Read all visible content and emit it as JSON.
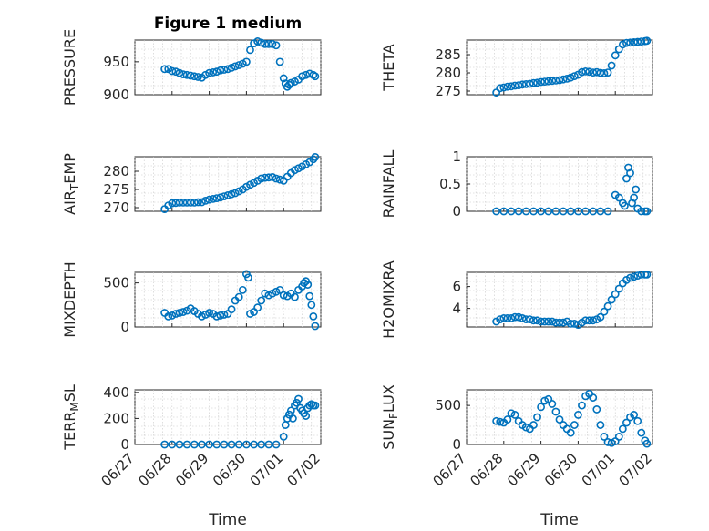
{
  "figure": {
    "title": "Figure 1 medium",
    "xlabel": "Time",
    "marker_color": "#0072BD",
    "x_tick_labels": [
      "06/27",
      "06/28",
      "06/29",
      "06/30",
      "07/01",
      "07/02"
    ],
    "x_range_days": [
      0,
      5
    ]
  },
  "chart_data": [
    {
      "type": "scatter",
      "title": "Figure 1 medium",
      "ylabel": "PRESSURE",
      "xlabel": "",
      "xlim": [
        "06/27",
        "07/02"
      ],
      "ylim": [
        900,
        983
      ],
      "yticks": [
        900,
        950
      ],
      "grid": true,
      "x": [
        0.8,
        0.9,
        1.0,
        1.1,
        1.2,
        1.3,
        1.4,
        1.5,
        1.6,
        1.7,
        1.8,
        1.9,
        2.0,
        2.1,
        2.2,
        2.3,
        2.4,
        2.5,
        2.6,
        2.7,
        2.8,
        2.9,
        3.0,
        3.1,
        3.2,
        3.3,
        3.4,
        3.5,
        3.6,
        3.7,
        3.8,
        3.9,
        4.0,
        4.05,
        4.1,
        4.15,
        4.2,
        4.3,
        4.4,
        4.5,
        4.6,
        4.7,
        4.8,
        4.85
      ],
      "y": [
        939,
        939,
        936,
        935,
        933,
        931,
        930,
        929,
        928,
        927,
        926,
        930,
        933,
        934,
        935,
        937,
        938,
        939,
        941,
        943,
        945,
        947,
        950,
        968,
        978,
        981,
        979,
        977,
        977,
        977,
        975,
        950,
        925,
        917,
        912,
        915,
        918,
        920,
        923,
        928,
        930,
        932,
        930,
        928
      ]
    },
    {
      "type": "scatter",
      "ylabel": "THETA",
      "xlabel": "",
      "xlim": [
        "06/27",
        "07/02"
      ],
      "ylim": [
        274,
        289
      ],
      "yticks": [
        275,
        280,
        285
      ],
      "grid": true,
      "x": [
        0.8,
        0.9,
        1.0,
        1.1,
        1.2,
        1.3,
        1.4,
        1.5,
        1.6,
        1.7,
        1.8,
        1.9,
        2.0,
        2.1,
        2.2,
        2.3,
        2.4,
        2.5,
        2.6,
        2.7,
        2.8,
        2.9,
        3.0,
        3.1,
        3.2,
        3.3,
        3.4,
        3.5,
        3.6,
        3.7,
        3.8,
        3.9,
        4.0,
        4.1,
        4.2,
        4.3,
        4.4,
        4.5,
        4.6,
        4.7,
        4.8,
        4.85
      ],
      "y": [
        274.6,
        275.8,
        276.0,
        276.2,
        276.3,
        276.5,
        276.6,
        276.8,
        276.9,
        277.0,
        277.2,
        277.3,
        277.5,
        277.6,
        277.7,
        277.8,
        277.9,
        278.0,
        278.2,
        278.4,
        278.7,
        279.1,
        279.5,
        280.2,
        280.4,
        280.3,
        280.1,
        280.2,
        280.0,
        279.9,
        280.1,
        282.0,
        284.8,
        286.5,
        287.8,
        288.2,
        288.3,
        288.4,
        288.5,
        288.6,
        288.7,
        288.8
      ]
    },
    {
      "type": "scatter",
      "ylabel": "AIR_TEMP",
      "xlabel": "",
      "xlim": [
        "06/27",
        "07/02"
      ],
      "ylim": [
        269,
        284
      ],
      "yticks": [
        270,
        275,
        280
      ],
      "grid": true,
      "x": [
        0.8,
        0.9,
        1.0,
        1.1,
        1.2,
        1.3,
        1.4,
        1.5,
        1.6,
        1.7,
        1.8,
        1.9,
        2.0,
        2.1,
        2.2,
        2.3,
        2.4,
        2.5,
        2.6,
        2.7,
        2.8,
        2.9,
        3.0,
        3.1,
        3.2,
        3.3,
        3.4,
        3.5,
        3.6,
        3.7,
        3.8,
        3.9,
        4.0,
        4.1,
        4.2,
        4.3,
        4.4,
        4.5,
        4.6,
        4.7,
        4.8,
        4.85
      ],
      "y": [
        269.6,
        270.6,
        271.2,
        271.3,
        271.4,
        271.4,
        271.4,
        271.4,
        271.4,
        271.5,
        271.5,
        271.9,
        272.2,
        272.4,
        272.6,
        272.8,
        273.1,
        273.4,
        273.7,
        274.0,
        274.5,
        275.0,
        275.7,
        276.3,
        276.8,
        277.4,
        278.0,
        278.2,
        278.3,
        278.4,
        278.0,
        277.7,
        277.4,
        278.5,
        279.5,
        280.3,
        280.8,
        281.3,
        281.9,
        282.5,
        283.3,
        283.9
      ]
    },
    {
      "type": "scatter",
      "ylabel": "RAINFALL",
      "xlabel": "",
      "xlim": [
        "06/27",
        "07/02"
      ],
      "ylim": [
        0,
        1
      ],
      "yticks": [
        0,
        0.5,
        1
      ],
      "grid": true,
      "x": [
        0.8,
        1.0,
        1.2,
        1.4,
        1.6,
        1.8,
        2.0,
        2.2,
        2.4,
        2.6,
        2.8,
        3.0,
        3.2,
        3.4,
        3.6,
        3.8,
        4.0,
        4.1,
        4.2,
        4.25,
        4.3,
        4.35,
        4.4,
        4.45,
        4.5,
        4.55,
        4.6,
        4.7,
        4.8,
        4.85
      ],
      "y": [
        0,
        0,
        0,
        0,
        0,
        0,
        0,
        0,
        0,
        0,
        0,
        0,
        0,
        0,
        0,
        0,
        0.3,
        0.25,
        0.15,
        0.1,
        0.6,
        0.8,
        0.7,
        0.15,
        0.25,
        0.4,
        0.05,
        0,
        0,
        0
      ]
    },
    {
      "type": "scatter",
      "ylabel": "MIXDEPTH",
      "xlabel": "",
      "xlim": [
        "06/27",
        "07/02"
      ],
      "ylim": [
        0,
        620
      ],
      "yticks": [
        0,
        500
      ],
      "grid": true,
      "x": [
        0.8,
        0.9,
        1.0,
        1.1,
        1.2,
        1.3,
        1.4,
        1.5,
        1.6,
        1.7,
        1.8,
        1.9,
        2.0,
        2.1,
        2.2,
        2.3,
        2.4,
        2.5,
        2.6,
        2.7,
        2.8,
        2.9,
        3.0,
        3.05,
        3.1,
        3.2,
        3.3,
        3.4,
        3.5,
        3.6,
        3.7,
        3.8,
        3.9,
        4.0,
        4.1,
        4.2,
        4.3,
        4.4,
        4.5,
        4.55,
        4.6,
        4.65,
        4.7,
        4.75,
        4.8,
        4.85
      ],
      "y": [
        160,
        120,
        130,
        150,
        160,
        170,
        185,
        210,
        180,
        150,
        120,
        140,
        160,
        150,
        120,
        130,
        140,
        150,
        200,
        300,
        340,
        420,
        600,
        560,
        150,
        170,
        220,
        300,
        380,
        360,
        380,
        400,
        420,
        360,
        350,
        380,
        340,
        420,
        460,
        500,
        520,
        480,
        350,
        250,
        120,
        10
      ]
    },
    {
      "type": "scatter",
      "ylabel": "H2OMIXRA",
      "xlabel": "",
      "xlim": [
        "06/27",
        "07/02"
      ],
      "ylim": [
        2.3,
        7.3
      ],
      "yticks": [
        4,
        6
      ],
      "grid": true,
      "x": [
        0.8,
        0.9,
        1.0,
        1.1,
        1.2,
        1.3,
        1.4,
        1.5,
        1.6,
        1.7,
        1.8,
        1.9,
        2.0,
        2.1,
        2.2,
        2.3,
        2.4,
        2.5,
        2.6,
        2.7,
        2.8,
        2.9,
        3.0,
        3.1,
        3.2,
        3.3,
        3.4,
        3.5,
        3.6,
        3.7,
        3.8,
        3.9,
        4.0,
        4.1,
        4.2,
        4.3,
        4.4,
        4.5,
        4.6,
        4.7,
        4.8,
        4.85
      ],
      "y": [
        2.8,
        3.0,
        3.1,
        3.1,
        3.1,
        3.2,
        3.2,
        3.1,
        3.0,
        3.0,
        2.9,
        2.9,
        2.8,
        2.8,
        2.8,
        2.8,
        2.7,
        2.7,
        2.7,
        2.8,
        2.6,
        2.6,
        2.5,
        2.7,
        2.9,
        2.9,
        2.9,
        3.0,
        3.2,
        3.7,
        4.2,
        4.8,
        5.3,
        5.8,
        6.3,
        6.6,
        6.8,
        6.9,
        7.0,
        7.1,
        7.1,
        7.1
      ]
    },
    {
      "type": "scatter",
      "ylabel": "TERR_MSL",
      "xlabel": "Time",
      "xlim": [
        "06/27",
        "07/02"
      ],
      "ylim": [
        0,
        420
      ],
      "yticks": [
        0,
        200,
        400
      ],
      "grid": true,
      "x": [
        0.8,
        1.0,
        1.2,
        1.4,
        1.6,
        1.8,
        2.0,
        2.2,
        2.4,
        2.6,
        2.8,
        3.0,
        3.2,
        3.4,
        3.6,
        3.8,
        4.0,
        4.05,
        4.1,
        4.15,
        4.2,
        4.25,
        4.3,
        4.35,
        4.4,
        4.45,
        4.5,
        4.55,
        4.6,
        4.65,
        4.7,
        4.75,
        4.8,
        4.85
      ],
      "y": [
        0,
        0,
        0,
        0,
        0,
        0,
        0,
        0,
        0,
        0,
        0,
        0,
        0,
        0,
        0,
        0,
        60,
        150,
        200,
        230,
        260,
        200,
        300,
        320,
        350,
        280,
        260,
        240,
        220,
        280,
        300,
        310,
        300,
        300
      ]
    },
    {
      "type": "scatter",
      "ylabel": "SUN_FLUX",
      "xlabel": "Time",
      "xlim": [
        "06/27",
        "07/02"
      ],
      "ylim": [
        0,
        700
      ],
      "yticks": [
        0,
        500
      ],
      "grid": true,
      "x": [
        0.8,
        0.9,
        1.0,
        1.1,
        1.2,
        1.3,
        1.4,
        1.5,
        1.6,
        1.7,
        1.8,
        1.9,
        2.0,
        2.1,
        2.2,
        2.3,
        2.4,
        2.5,
        2.6,
        2.7,
        2.8,
        2.9,
        3.0,
        3.1,
        3.2,
        3.3,
        3.4,
        3.5,
        3.6,
        3.7,
        3.8,
        3.9,
        4.0,
        4.1,
        4.2,
        4.3,
        4.4,
        4.5,
        4.6,
        4.7,
        4.8,
        4.85
      ],
      "y": [
        300,
        290,
        280,
        320,
        400,
        380,
        300,
        250,
        220,
        200,
        250,
        350,
        480,
        560,
        580,
        520,
        420,
        320,
        250,
        200,
        150,
        250,
        380,
        500,
        620,
        650,
        600,
        450,
        250,
        100,
        30,
        20,
        40,
        100,
        200,
        280,
        350,
        380,
        300,
        150,
        50,
        10
      ]
    }
  ]
}
